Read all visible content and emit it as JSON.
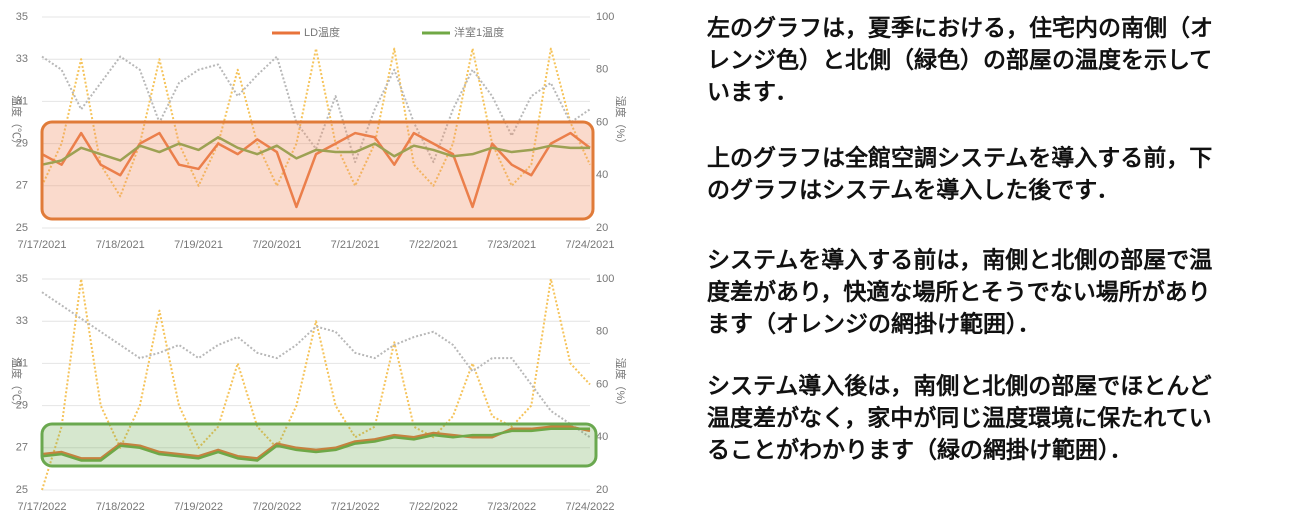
{
  "chart_data": [
    {
      "type": "line",
      "legend": "top",
      "grid": true,
      "ylabel": "温度（℃）",
      "y2label": "湿度（%）",
      "xlim": [
        0,
        7
      ],
      "ylim": [
        25,
        35
      ],
      "yticks": [
        25,
        27,
        29,
        31,
        33,
        35
      ],
      "y2lim": [
        20,
        100
      ],
      "y2ticks": [
        20,
        40,
        60,
        80,
        100
      ],
      "xticks": [
        {
          "value": 0,
          "label": "7/17/2021"
        },
        {
          "value": 1,
          "label": "7/18/2021"
        },
        {
          "value": 2,
          "label": "7/19/2021"
        },
        {
          "value": 3,
          "label": "7/20/2021"
        },
        {
          "value": 4,
          "label": "7/21/2021"
        },
        {
          "value": 5,
          "label": "7/22/2021"
        },
        {
          "value": 6,
          "label": "7/23/2021"
        },
        {
          "value": 7,
          "label": "7/24/2021"
        }
      ],
      "x": [
        0,
        0.25,
        0.5,
        0.75,
        1,
        1.25,
        1.5,
        1.75,
        2,
        2.25,
        2.5,
        2.75,
        3,
        3.25,
        3.5,
        3.75,
        4,
        4.25,
        4.5,
        4.75,
        5,
        5.25,
        5.5,
        5.75,
        6,
        6.25,
        6.5,
        6.75,
        7
      ],
      "series": [
        {
          "color": "#f5c35a",
          "style": "dotted",
          "values": [
            27,
            29,
            33,
            28,
            26.5,
            29,
            33,
            29,
            27,
            29,
            32.5,
            29,
            27,
            29,
            33.5,
            29,
            27,
            29,
            33.5,
            28,
            27,
            29,
            33.5,
            29,
            27,
            28,
            33.5,
            30,
            28
          ]
        },
        {
          "color": "#b8b8b8",
          "style": "dotted",
          "axis": "y2",
          "values": [
            85,
            80,
            65,
            75,
            85,
            80,
            60,
            75,
            80,
            82,
            70,
            78,
            85,
            60,
            50,
            70,
            45,
            65,
            80,
            60,
            45,
            65,
            80,
            70,
            55,
            70,
            75,
            60,
            65
          ]
        },
        {
          "name": "LD温度",
          "color": "#e8733a",
          "values": [
            28.5,
            28,
            29.5,
            28,
            27.5,
            29,
            29.5,
            28,
            27.8,
            29,
            28.5,
            29.2,
            28.6,
            26,
            28.5,
            29,
            29.5,
            29.3,
            28,
            29.5,
            29,
            28.5,
            26,
            29,
            28,
            27.5,
            29,
            29.5,
            28.8
          ]
        },
        {
          "name": "洋室1温度",
          "color": "#70a845",
          "values": [
            28,
            28.2,
            28.8,
            28.5,
            28.2,
            28.9,
            28.6,
            29,
            28.7,
            29.3,
            28.8,
            28.5,
            28.9,
            28.3,
            28.7,
            28.6,
            28.6,
            29,
            28.4,
            28.9,
            28.7,
            28.4,
            28.5,
            28.8,
            28.6,
            28.7,
            28.9,
            28.8,
            28.8
          ]
        }
      ]
    },
    {
      "type": "line",
      "grid": true,
      "ylabel": "温度（℃）",
      "y2label": "湿度（%）",
      "xlim": [
        0,
        7
      ],
      "ylim": [
        25,
        35
      ],
      "yticks": [
        25,
        27,
        29,
        31,
        33,
        35
      ],
      "y2lim": [
        20,
        100
      ],
      "y2ticks": [
        20,
        40,
        60,
        80,
        100
      ],
      "xticks": [
        {
          "value": 0,
          "label": "7/17/2022"
        },
        {
          "value": 1,
          "label": "7/18/2022"
        },
        {
          "value": 2,
          "label": "7/19/2022"
        },
        {
          "value": 3,
          "label": "7/20/2022"
        },
        {
          "value": 4,
          "label": "7/21/2022"
        },
        {
          "value": 5,
          "label": "7/22/2022"
        },
        {
          "value": 6,
          "label": "7/23/2022"
        },
        {
          "value": 7,
          "label": "7/24/2022"
        }
      ],
      "x": [
        0,
        0.25,
        0.5,
        0.75,
        1,
        1.25,
        1.5,
        1.75,
        2,
        2.25,
        2.5,
        2.75,
        3,
        3.25,
        3.5,
        3.75,
        4,
        4.25,
        4.5,
        4.75,
        5,
        5.25,
        5.5,
        5.75,
        6,
        6.25,
        6.5,
        6.75,
        7
      ],
      "series": [
        {
          "color": "#f5c35a",
          "style": "dotted",
          "values": [
            25,
            28,
            35,
            29,
            27,
            29,
            33.5,
            29,
            27,
            28,
            31,
            28,
            27,
            29,
            33,
            29,
            27.5,
            28,
            32,
            28,
            27.5,
            28.5,
            31,
            28.5,
            28,
            29,
            35,
            31,
            30
          ]
        },
        {
          "color": "#b8b8b8",
          "style": "dotted",
          "axis": "y2",
          "values": [
            95,
            90,
            85,
            80,
            75,
            70,
            72,
            75,
            70,
            75,
            78,
            72,
            70,
            75,
            82,
            80,
            72,
            70,
            75,
            78,
            80,
            75,
            65,
            70,
            70,
            60,
            50,
            45,
            40
          ]
        },
        {
          "name": "LD温度",
          "color": "#e8733a",
          "values": [
            26.7,
            26.8,
            26.5,
            26.5,
            27.2,
            27.1,
            26.8,
            26.7,
            26.6,
            26.9,
            26.6,
            26.5,
            27.2,
            27,
            26.9,
            27,
            27.3,
            27.4,
            27.6,
            27.5,
            27.7,
            27.6,
            27.5,
            27.5,
            27.9,
            27.9,
            28,
            28,
            27.8
          ]
        },
        {
          "name": "洋室1温度",
          "color": "#70a845",
          "values": [
            26.6,
            26.7,
            26.4,
            26.4,
            27.1,
            27,
            26.7,
            26.6,
            26.5,
            26.8,
            26.5,
            26.4,
            27.1,
            26.9,
            26.8,
            26.9,
            27.2,
            27.3,
            27.5,
            27.4,
            27.6,
            27.5,
            27.6,
            27.6,
            27.8,
            27.8,
            27.9,
            27.9,
            27.9
          ]
        }
      ]
    }
  ],
  "paragraphs": [
    [
      "左のグラフは，夏季における，住宅内の南側（オ",
      "レンジ色）と北側（緑色）の部屋の温度を示して",
      "います．"
    ],
    [
      "上のグラフは全館空調システムを導入する前，下",
      "のグラフはシステムを導入した後です．"
    ],
    [
      "システムを導入する前は，南側と北側の部屋で温",
      "度差があり，快適な場所とそうでない場所があり",
      "ます（オレンジの網掛け範囲）．"
    ],
    [
      "システム導入後は，南側と北側の部屋でほとんど",
      "温度差がなく，家中が同じ温度環境に保たれてい",
      "ることがわかります（緑の網掛け範囲）．"
    ]
  ]
}
